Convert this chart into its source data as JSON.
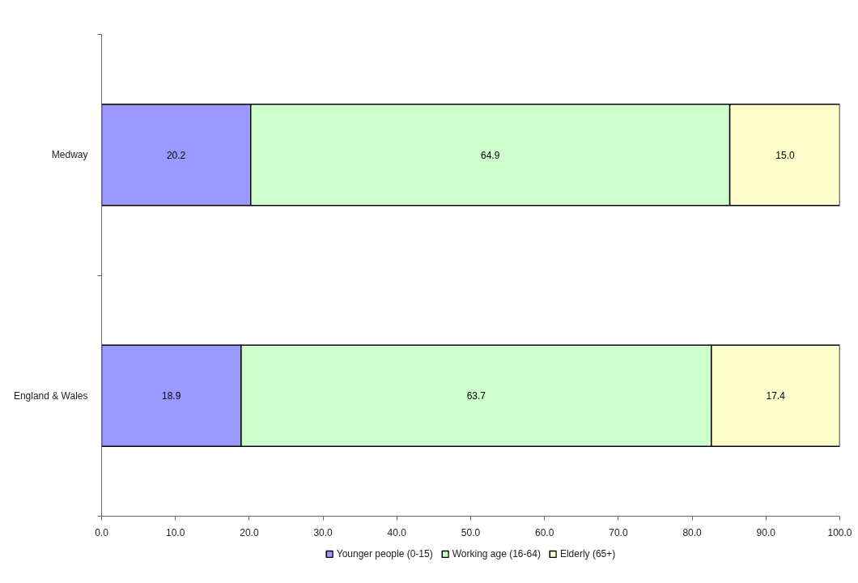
{
  "chart_data": {
    "type": "bar",
    "orientation": "horizontal",
    "stacked": true,
    "categories": [
      "Medway",
      "England & Wales"
    ],
    "series": [
      {
        "name": "Younger people (0-15)",
        "color": "#9999ff",
        "values": [
          20.2,
          18.9
        ],
        "value_labels": [
          "20.2",
          "18.9"
        ]
      },
      {
        "name": "Working age (16-64)",
        "color": "#ccffcc",
        "values": [
          64.9,
          63.7
        ],
        "value_labels": [
          "64.9",
          "63.7"
        ]
      },
      {
        "name": "Elderly (65+)",
        "color": "#ffffcc",
        "values": [
          15.0,
          17.4
        ],
        "value_labels": [
          "15.0",
          "17.4"
        ]
      }
    ],
    "xlim": [
      0,
      100
    ],
    "xticks": [
      {
        "value": 0,
        "label": "0.0"
      },
      {
        "value": 10,
        "label": "10.0"
      },
      {
        "value": 20,
        "label": "20.0"
      },
      {
        "value": 30,
        "label": "30.0"
      },
      {
        "value": 40,
        "label": "40.0"
      },
      {
        "value": 50,
        "label": "50.0"
      },
      {
        "value": 60,
        "label": "60.0"
      },
      {
        "value": 70,
        "label": "70.0"
      },
      {
        "value": 80,
        "label": "80.0"
      },
      {
        "value": 90,
        "label": "90.0"
      },
      {
        "value": 100,
        "label": "100.0"
      }
    ],
    "grid": false,
    "legend": "bottom"
  }
}
